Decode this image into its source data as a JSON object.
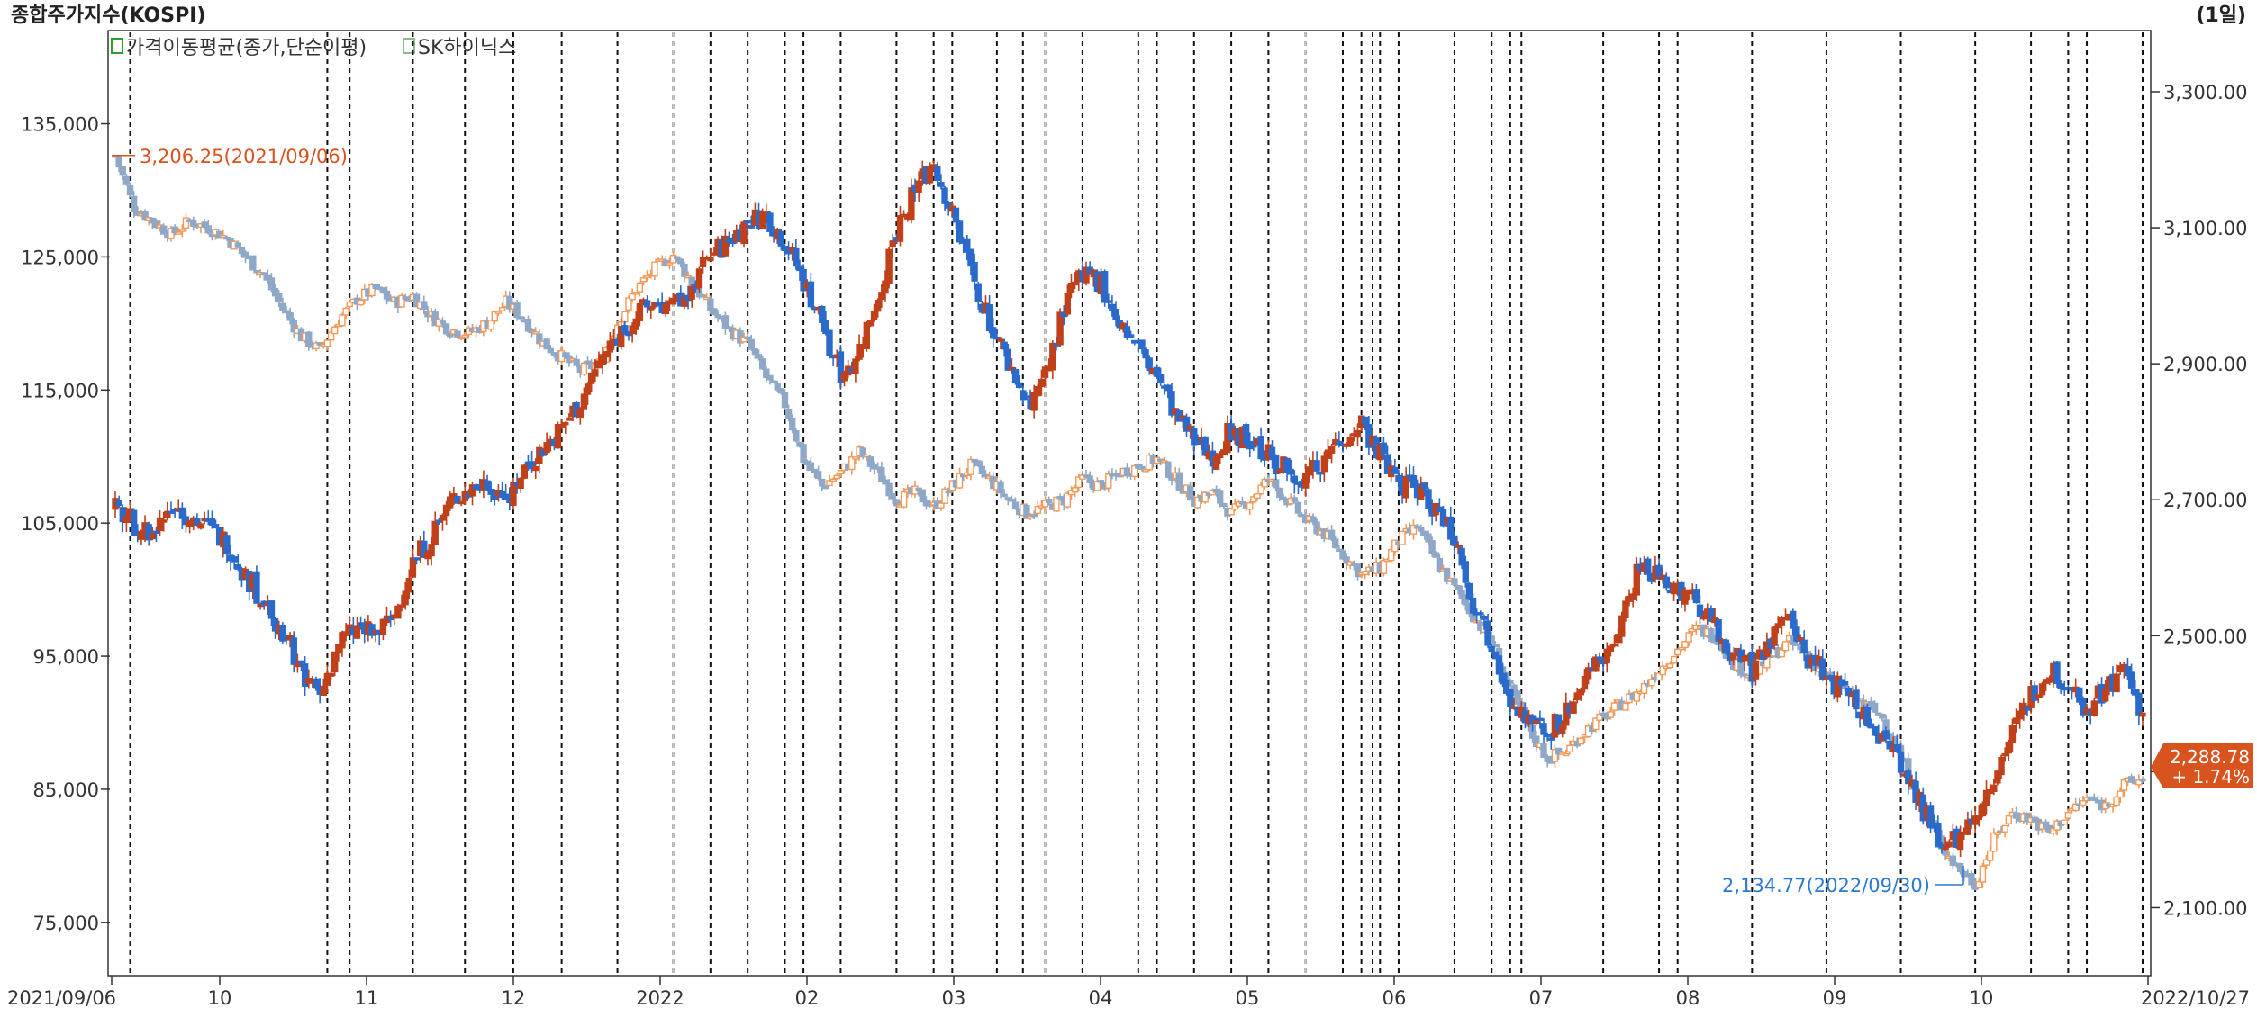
{
  "header": {
    "title": "종합주가지수(KOSPI)",
    "period": "(1일)"
  },
  "legend": [
    {
      "label": "가격이동평균(종가,단순이평)",
      "color": "#2ca02c"
    },
    {
      "label": "SK하이닉스",
      "color": "#8fbc8f"
    }
  ],
  "colors": {
    "up": "#e8742c",
    "down": "#1f5fbf",
    "stock_up": "#c0401a",
    "stock_down": "#2a6acb",
    "kospi_light_up": "#f29a5a",
    "kospi_light_down": "#8fa8c8",
    "axis": "#333333",
    "high_marker": "#d9531e",
    "low_marker": "#2a7ad5",
    "current_box": "#d9531e"
  },
  "chart_data": {
    "type": "candlestick",
    "title": "종합주가지수(KOSPI)",
    "series": [
      {
        "name": "종합주가지수(KOSPI)",
        "axis": "right"
      },
      {
        "name": "SK하이닉스",
        "axis": "left"
      }
    ],
    "left_axis": {
      "ticks": [
        135000,
        125000,
        115000,
        105000,
        95000,
        85000,
        75000
      ],
      "tick_labels": [
        "135,000",
        "125,000",
        "115,000",
        "105,000",
        "95,000",
        "85,000",
        "75,000"
      ],
      "range": [
        71000,
        142000
      ]
    },
    "right_axis": {
      "ticks": [
        3300,
        3100,
        2900,
        2700,
        2500,
        2300,
        2100
      ],
      "tick_labels": [
        "3,300.00",
        "3,100.00",
        "2,900.00",
        "2,700.00",
        "2,500.00",
        "",
        "2,100.00"
      ],
      "range": [
        2000,
        3390
      ]
    },
    "x_axis": {
      "start": "2021/09/06",
      "end": "2022/10/27",
      "month_labels": [
        "2021/09/06",
        "10",
        "11",
        "12",
        "2022",
        "02",
        "03",
        "04",
        "05",
        "06",
        "07",
        "08",
        "09",
        "10",
        "2022/10/27"
      ]
    },
    "annotations": {
      "high": {
        "label": "3,206.25(2021/09/06)",
        "value": 3206.25
      },
      "low": {
        "label": "2,134.77(2022/09/30)",
        "value": 2134.77
      },
      "last_value": "2,288.78",
      "last_change": "+ 1.74%"
    },
    "kospi_path": [
      [
        0,
        3206
      ],
      [
        5,
        3130
      ],
      [
        10,
        3110
      ],
      [
        15,
        3090
      ],
      [
        20,
        3110
      ],
      [
        25,
        3100
      ],
      [
        30,
        3085
      ],
      [
        40,
        3030
      ],
      [
        45,
        2980
      ],
      [
        50,
        2940
      ],
      [
        55,
        2920
      ],
      [
        60,
        2965
      ],
      [
        65,
        2995
      ],
      [
        70,
        3010
      ],
      [
        75,
        2990
      ],
      [
        80,
        3000
      ],
      [
        85,
        2970
      ],
      [
        90,
        2950
      ],
      [
        95,
        2945
      ],
      [
        100,
        2960
      ],
      [
        105,
        2990
      ],
      [
        110,
        2965
      ],
      [
        115,
        2930
      ],
      [
        120,
        2910
      ],
      [
        125,
        2890
      ],
      [
        130,
        2900
      ],
      [
        135,
        2960
      ],
      [
        140,
        3010
      ],
      [
        145,
        3040
      ],
      [
        150,
        3060
      ],
      [
        155,
        3020
      ],
      [
        160,
        2980
      ],
      [
        165,
        2950
      ],
      [
        170,
        2930
      ],
      [
        175,
        2880
      ],
      [
        180,
        2840
      ],
      [
        185,
        2760
      ],
      [
        190,
        2720
      ],
      [
        195,
        2740
      ],
      [
        200,
        2770
      ],
      [
        205,
        2740
      ],
      [
        210,
        2700
      ],
      [
        215,
        2710
      ],
      [
        220,
        2690
      ],
      [
        225,
        2720
      ],
      [
        230,
        2750
      ],
      [
        235,
        2730
      ],
      [
        240,
        2700
      ],
      [
        245,
        2680
      ],
      [
        250,
        2690
      ],
      [
        255,
        2700
      ],
      [
        260,
        2730
      ],
      [
        265,
        2720
      ],
      [
        270,
        2740
      ],
      [
        275,
        2750
      ],
      [
        280,
        2760
      ],
      [
        285,
        2730
      ],
      [
        290,
        2700
      ],
      [
        295,
        2710
      ],
      [
        300,
        2680
      ],
      [
        305,
        2700
      ],
      [
        310,
        2730
      ],
      [
        315,
        2700
      ],
      [
        320,
        2670
      ],
      [
        325,
        2650
      ],
      [
        330,
        2620
      ],
      [
        335,
        2590
      ],
      [
        340,
        2600
      ],
      [
        345,
        2640
      ],
      [
        350,
        2660
      ],
      [
        355,
        2610
      ],
      [
        360,
        2570
      ],
      [
        365,
        2530
      ],
      [
        370,
        2490
      ],
      [
        375,
        2420
      ],
      [
        380,
        2360
      ],
      [
        385,
        2320
      ],
      [
        390,
        2330
      ],
      [
        395,
        2360
      ],
      [
        400,
        2380
      ],
      [
        405,
        2400
      ],
      [
        410,
        2420
      ],
      [
        415,
        2450
      ],
      [
        420,
        2480
      ],
      [
        425,
        2510
      ],
      [
        430,
        2500
      ],
      [
        435,
        2460
      ],
      [
        440,
        2440
      ],
      [
        445,
        2470
      ],
      [
        450,
        2490
      ],
      [
        455,
        2470
      ],
      [
        460,
        2440
      ],
      [
        465,
        2420
      ],
      [
        470,
        2400
      ],
      [
        475,
        2380
      ],
      [
        480,
        2320
      ],
      [
        485,
        2260
      ],
      [
        490,
        2200
      ],
      [
        495,
        2160
      ],
      [
        500,
        2135
      ],
      [
        505,
        2200
      ],
      [
        510,
        2240
      ],
      [
        515,
        2230
      ],
      [
        520,
        2210
      ],
      [
        525,
        2240
      ],
      [
        530,
        2260
      ],
      [
        535,
        2250
      ],
      [
        540,
        2280
      ],
      [
        545,
        2289
      ]
    ],
    "stock_path": [
      [
        0,
        106000
      ],
      [
        5,
        105000
      ],
      [
        10,
        104000
      ],
      [
        15,
        106500
      ],
      [
        20,
        105500
      ],
      [
        25,
        104500
      ],
      [
        30,
        103500
      ],
      [
        35,
        101000
      ],
      [
        40,
        99000
      ],
      [
        45,
        97000
      ],
      [
        50,
        94000
      ],
      [
        55,
        92000
      ],
      [
        60,
        96000
      ],
      [
        65,
        97000
      ],
      [
        70,
        96500
      ],
      [
        75,
        98000
      ],
      [
        80,
        102000
      ],
      [
        85,
        104000
      ],
      [
        90,
        106500
      ],
      [
        95,
        107500
      ],
      [
        100,
        108000
      ],
      [
        105,
        107000
      ],
      [
        110,
        109000
      ],
      [
        115,
        110500
      ],
      [
        120,
        112000
      ],
      [
        125,
        114000
      ],
      [
        130,
        117000
      ],
      [
        135,
        119000
      ],
      [
        140,
        120500
      ],
      [
        145,
        121500
      ],
      [
        150,
        121000
      ],
      [
        155,
        123000
      ],
      [
        160,
        125000
      ],
      [
        165,
        126000
      ],
      [
        170,
        127500
      ],
      [
        175,
        128000
      ],
      [
        180,
        126000
      ],
      [
        185,
        123000
      ],
      [
        190,
        120000
      ],
      [
        195,
        116000
      ],
      [
        200,
        118000
      ],
      [
        205,
        122000
      ],
      [
        210,
        127000
      ],
      [
        215,
        130000
      ],
      [
        220,
        132000
      ],
      [
        225,
        128000
      ],
      [
        230,
        124000
      ],
      [
        235,
        120000
      ],
      [
        240,
        117000
      ],
      [
        245,
        114000
      ],
      [
        250,
        116000
      ],
      [
        255,
        121000
      ],
      [
        260,
        124000
      ],
      [
        265,
        123000
      ],
      [
        270,
        120000
      ],
      [
        275,
        118000
      ],
      [
        280,
        116000
      ],
      [
        285,
        113000
      ],
      [
        290,
        111000
      ],
      [
        295,
        110000
      ],
      [
        300,
        112000
      ],
      [
        305,
        111000
      ],
      [
        310,
        110000
      ],
      [
        315,
        109000
      ],
      [
        320,
        108500
      ],
      [
        325,
        110000
      ],
      [
        330,
        111500
      ],
      [
        335,
        112500
      ],
      [
        340,
        110000
      ],
      [
        345,
        108000
      ],
      [
        350,
        107500
      ],
      [
        355,
        106000
      ],
      [
        360,
        104000
      ],
      [
        365,
        99000
      ],
      [
        370,
        96000
      ],
      [
        375,
        92000
      ],
      [
        380,
        90000
      ],
      [
        385,
        89000
      ],
      [
        390,
        91000
      ],
      [
        395,
        93000
      ],
      [
        400,
        95000
      ],
      [
        405,
        98000
      ],
      [
        410,
        102000
      ],
      [
        415,
        101000
      ],
      [
        420,
        100000
      ],
      [
        425,
        99000
      ],
      [
        430,
        97500
      ],
      [
        435,
        95000
      ],
      [
        440,
        94000
      ],
      [
        445,
        96000
      ],
      [
        450,
        98000
      ],
      [
        455,
        95000
      ],
      [
        460,
        93500
      ],
      [
        465,
        92000
      ],
      [
        470,
        90500
      ],
      [
        475,
        89000
      ],
      [
        480,
        87000
      ],
      [
        485,
        84000
      ],
      [
        490,
        81500
      ],
      [
        495,
        81000
      ],
      [
        500,
        83000
      ],
      [
        505,
        86000
      ],
      [
        510,
        89000
      ],
      [
        515,
        92000
      ],
      [
        520,
        94000
      ],
      [
        525,
        93000
      ],
      [
        530,
        91000
      ],
      [
        535,
        92500
      ],
      [
        540,
        94000
      ],
      [
        545,
        90500
      ]
    ],
    "dashed_day_markers": [
      4,
      57,
      63,
      80,
      94,
      107,
      120,
      135,
      150,
      160,
      170,
      180,
      185,
      195,
      210,
      220,
      225,
      237,
      244,
      250,
      260,
      275,
      280,
      290,
      300,
      310,
      320,
      330,
      335,
      338,
      340,
      345,
      360,
      370,
      375,
      378,
      400,
      415,
      420,
      440,
      460,
      480,
      500,
      515,
      525,
      530,
      545
    ],
    "grid": "vertical dashed event markers only",
    "total_days": 546
  }
}
